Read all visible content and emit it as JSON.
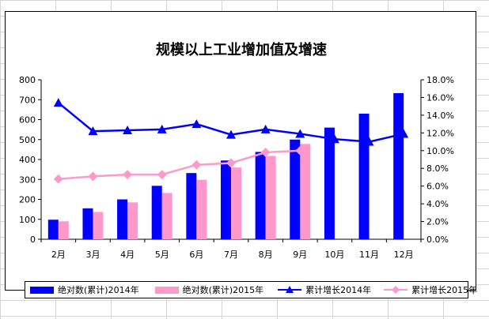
{
  "chart_data": {
    "type": "bar+line",
    "title": "规模以上工业增加值及增速",
    "categories": [
      "2月",
      "3月",
      "4月",
      "5月",
      "6月",
      "7月",
      "8月",
      "9月",
      "10月",
      "11月",
      "12月"
    ],
    "y_left": {
      "lim": [
        0,
        800
      ],
      "ticks": [
        "0",
        "100",
        "200",
        "300",
        "400",
        "500",
        "600",
        "700",
        "800"
      ]
    },
    "y_right": {
      "lim": [
        0,
        18
      ],
      "ticks": [
        "0.0%",
        "2.0%",
        "4.0%",
        "6.0%",
        "8.0%",
        "10.0%",
        "12.0%",
        "14.0%",
        "16.0%",
        "18.0%"
      ]
    },
    "series": [
      {
        "name": "绝对数(累计)2014年",
        "type": "bar",
        "axis": "left",
        "color": "#0000FF",
        "values": [
          98,
          155,
          200,
          268,
          332,
          395,
          438,
          500,
          560,
          630,
          733
        ]
      },
      {
        "name": "绝对数(累计)2015年",
        "type": "bar",
        "axis": "left",
        "color": "#FF99CC",
        "values": [
          90,
          137,
          185,
          232,
          298,
          360,
          418,
          478,
          null,
          null,
          null
        ]
      },
      {
        "name": "累计增长2014年",
        "type": "line",
        "axis": "right",
        "color": "#0000FF",
        "marker": "triangle",
        "values": [
          15.4,
          12.2,
          12.3,
          12.4,
          13.0,
          11.8,
          12.4,
          11.9,
          11.3,
          11.0,
          11.9
        ]
      },
      {
        "name": "累计增长2015年",
        "type": "line",
        "axis": "right",
        "color": "#FF99CC",
        "marker": "diamond",
        "values": [
          6.8,
          7.1,
          7.3,
          7.3,
          8.4,
          8.6,
          9.8,
          10.0,
          null,
          null,
          null
        ]
      }
    ]
  }
}
